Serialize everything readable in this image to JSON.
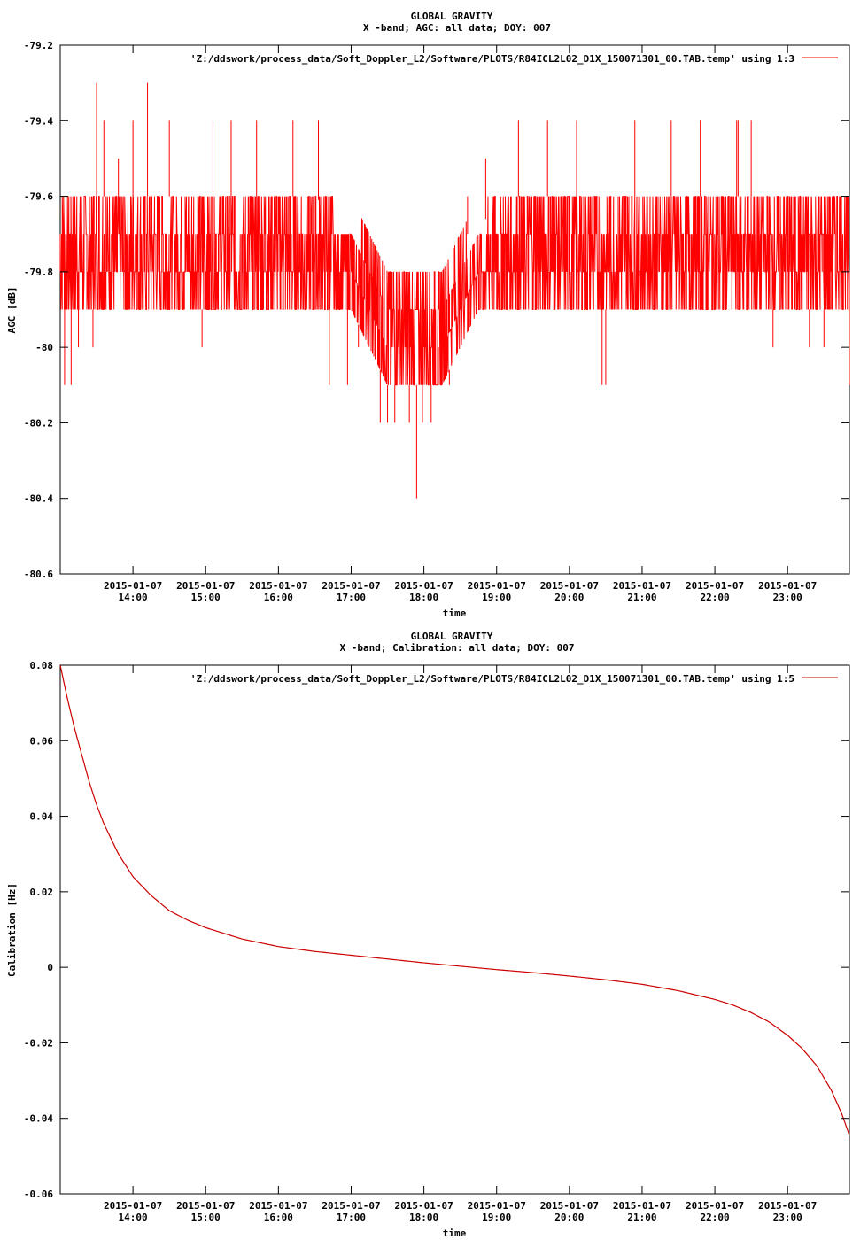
{
  "chart_data": [
    {
      "type": "line",
      "title": "GLOBAL GRAVITY",
      "subtitle": "X -band; AGC: all data; DOY: 007",
      "xlabel": "time",
      "ylabel": "AGC [dB]",
      "ylim": [
        -80.6,
        -79.2
      ],
      "yticks": [
        -80.6,
        -80.4,
        -80.2,
        -80,
        -79.8,
        -79.6,
        -79.4,
        -79.2
      ],
      "ytick_labels": [
        "-80.6",
        "-80.4",
        "-80.2",
        "-80",
        "-79.8",
        "-79.6",
        "-79.4",
        "-79.2"
      ],
      "xlim_hours": [
        13.0,
        23.85
      ],
      "xticks_hours": [
        14,
        15,
        16,
        17,
        18,
        19,
        20,
        21,
        22,
        23
      ],
      "xtick_dates": [
        "2015-01-07",
        "2015-01-07",
        "2015-01-07",
        "2015-01-07",
        "2015-01-07",
        "2015-01-07",
        "2015-01-07",
        "2015-01-07",
        "2015-01-07",
        "2015-01-07"
      ],
      "xtick_times": [
        "14:00",
        "15:00",
        "16:00",
        "17:00",
        "18:00",
        "19:00",
        "20:00",
        "21:00",
        "22:00",
        "23:00"
      ],
      "grid": false,
      "legend_position": "top-right",
      "series": [
        {
          "name": "'Z:/ddswork/process_data/Soft_Doppler_L2/Software/PLOTS/R84ICL2L02_D1X_150071301_00.TAB.temp' using 1:3",
          "color": "#ff0000",
          "x_hours": [
            13.0,
            13.5,
            14.0,
            14.5,
            15.0,
            15.5,
            16.0,
            16.5,
            17.0,
            17.25,
            17.5,
            17.75,
            18.0,
            18.25,
            18.5,
            18.75,
            19.0,
            19.5,
            20.0,
            20.5,
            21.0,
            21.5,
            22.0,
            22.5,
            23.0,
            23.5,
            23.85
          ],
          "low": [
            -79.9,
            -79.9,
            -79.9,
            -79.9,
            -79.9,
            -79.9,
            -79.9,
            -79.9,
            -79.9,
            -80.0,
            -80.1,
            -80.1,
            -80.1,
            -80.1,
            -80.0,
            -79.9,
            -79.9,
            -79.9,
            -79.9,
            -79.9,
            -79.9,
            -79.9,
            -79.9,
            -79.9,
            -79.9,
            -79.9,
            -79.9
          ],
          "high": [
            -79.6,
            -79.6,
            -79.6,
            -79.6,
            -79.6,
            -79.6,
            -79.6,
            -79.6,
            -79.7,
            -79.7,
            -79.8,
            -79.8,
            -79.8,
            -79.8,
            -79.7,
            -79.7,
            -79.6,
            -79.6,
            -79.6,
            -79.6,
            -79.6,
            -79.6,
            -79.6,
            -79.6,
            -79.6,
            -79.6,
            -79.6
          ],
          "spikes": [
            {
              "x_hours": 13.06,
              "y": -80.1
            },
            {
              "x_hours": 13.15,
              "y": -80.1
            },
            {
              "x_hours": 13.25,
              "y": -80.0
            },
            {
              "x_hours": 13.45,
              "y": -80.0
            },
            {
              "x_hours": 13.5,
              "y": -79.3
            },
            {
              "x_hours": 13.6,
              "y": -79.4
            },
            {
              "x_hours": 13.8,
              "y": -79.5
            },
            {
              "x_hours": 14.0,
              "y": -79.4
            },
            {
              "x_hours": 14.2,
              "y": -79.3
            },
            {
              "x_hours": 14.5,
              "y": -79.4
            },
            {
              "x_hours": 14.95,
              "y": -80.0
            },
            {
              "x_hours": 15.1,
              "y": -79.4
            },
            {
              "x_hours": 15.35,
              "y": -79.4
            },
            {
              "x_hours": 15.7,
              "y": -79.4
            },
            {
              "x_hours": 16.2,
              "y": -79.4
            },
            {
              "x_hours": 16.55,
              "y": -79.4
            },
            {
              "x_hours": 16.7,
              "y": -80.1
            },
            {
              "x_hours": 16.95,
              "y": -80.1
            },
            {
              "x_hours": 17.1,
              "y": -80.0
            },
            {
              "x_hours": 17.4,
              "y": -80.2
            },
            {
              "x_hours": 17.5,
              "y": -80.2
            },
            {
              "x_hours": 17.6,
              "y": -80.2
            },
            {
              "x_hours": 17.8,
              "y": -80.2
            },
            {
              "x_hours": 17.9,
              "y": -80.4
            },
            {
              "x_hours": 17.98,
              "y": -80.2
            },
            {
              "x_hours": 18.1,
              "y": -80.2
            },
            {
              "x_hours": 18.2,
              "y": -80.0
            },
            {
              "x_hours": 18.35,
              "y": -80.1
            },
            {
              "x_hours": 18.45,
              "y": -80.0
            },
            {
              "x_hours": 18.6,
              "y": -79.6
            },
            {
              "x_hours": 18.85,
              "y": -79.5
            },
            {
              "x_hours": 19.3,
              "y": -79.4
            },
            {
              "x_hours": 19.7,
              "y": -79.4
            },
            {
              "x_hours": 20.1,
              "y": -79.4
            },
            {
              "x_hours": 20.45,
              "y": -80.1
            },
            {
              "x_hours": 20.5,
              "y": -80.1
            },
            {
              "x_hours": 20.9,
              "y": -79.4
            },
            {
              "x_hours": 21.4,
              "y": -79.4
            },
            {
              "x_hours": 21.8,
              "y": -79.4
            },
            {
              "x_hours": 22.3,
              "y": -79.4
            },
            {
              "x_hours": 22.32,
              "y": -79.4
            },
            {
              "x_hours": 22.5,
              "y": -79.4
            },
            {
              "x_hours": 22.8,
              "y": -80.0
            },
            {
              "x_hours": 23.3,
              "y": -80.0
            },
            {
              "x_hours": 23.5,
              "y": -80.0
            },
            {
              "x_hours": 23.85,
              "y": -80.1
            }
          ]
        }
      ]
    },
    {
      "type": "line",
      "title": "GLOBAL GRAVITY",
      "subtitle": "X -band; Calibration: all data; DOY: 007",
      "xlabel": "time",
      "ylabel": "Calibration [Hz]",
      "ylim": [
        -0.06,
        0.08
      ],
      "yticks": [
        -0.06,
        -0.04,
        -0.02,
        0,
        0.02,
        0.04,
        0.06,
        0.08
      ],
      "ytick_labels": [
        "-0.06",
        "-0.04",
        "-0.02",
        "0",
        "0.02",
        "0.04",
        "0.06",
        "0.08"
      ],
      "xlim_hours": [
        13.0,
        23.85
      ],
      "xticks_hours": [
        14,
        15,
        16,
        17,
        18,
        19,
        20,
        21,
        22,
        23
      ],
      "xtick_dates": [
        "2015-01-07",
        "2015-01-07",
        "2015-01-07",
        "2015-01-07",
        "2015-01-07",
        "2015-01-07",
        "2015-01-07",
        "2015-01-07",
        "2015-01-07",
        "2015-01-07"
      ],
      "xtick_times": [
        "14:00",
        "15:00",
        "16:00",
        "17:00",
        "18:00",
        "19:00",
        "20:00",
        "21:00",
        "22:00",
        "23:00"
      ],
      "grid": false,
      "legend_position": "top-right",
      "series": [
        {
          "name": "'Z:/ddswork/process_data/Soft_Doppler_L2/Software/PLOTS/R84ICL2L02_D1X_150071301_00.TAB.temp' using 1:5",
          "color": "#cc0000",
          "x_hours": [
            13.0,
            13.1,
            13.2,
            13.3,
            13.4,
            13.5,
            13.6,
            13.7,
            13.8,
            13.9,
            14.0,
            14.25,
            14.5,
            14.75,
            15.0,
            15.5,
            16.0,
            16.5,
            17.0,
            17.5,
            18.0,
            18.5,
            19.0,
            19.5,
            20.0,
            20.5,
            21.0,
            21.5,
            22.0,
            22.25,
            22.5,
            22.75,
            23.0,
            23.2,
            23.4,
            23.6,
            23.75,
            23.85
          ],
          "y": [
            0.08,
            0.071,
            0.063,
            0.056,
            0.049,
            0.043,
            0.038,
            0.034,
            0.03,
            0.027,
            0.024,
            0.019,
            0.015,
            0.0125,
            0.0105,
            0.0075,
            0.0055,
            0.0042,
            0.0032,
            0.0022,
            0.0012,
            0.0003,
            -0.0006,
            -0.0014,
            -0.0023,
            -0.0033,
            -0.0045,
            -0.0062,
            -0.0085,
            -0.01,
            -0.012,
            -0.0145,
            -0.018,
            -0.0215,
            -0.026,
            -0.0325,
            -0.039,
            -0.0445
          ]
        }
      ]
    }
  ]
}
